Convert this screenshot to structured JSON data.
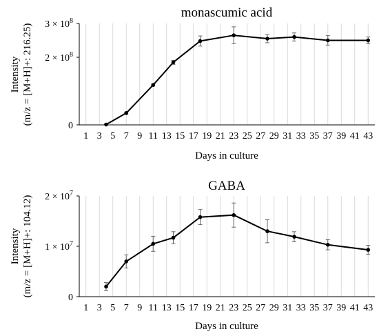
{
  "chart_data": [
    {
      "type": "line",
      "title": "monascumic acid",
      "xlabel": "Days in culture",
      "ylabel_line1": "Intensity",
      "ylabel_line2": "(m/z = [M+H]+: 216.25)",
      "x_ticks": [
        1,
        3,
        5,
        7,
        9,
        11,
        13,
        15,
        17,
        19,
        21,
        23,
        25,
        27,
        29,
        31,
        33,
        35,
        37,
        39,
        41,
        43
      ],
      "xlim": [
        0,
        44
      ],
      "ylim": [
        0,
        300000000
      ],
      "y_ticks": [
        {
          "value": 0,
          "coef": "0",
          "exp": ""
        },
        {
          "value": 200000000,
          "coef": "2 × 10",
          "exp": "8"
        },
        {
          "value": 300000000,
          "coef": "3 × 10",
          "exp": "8"
        }
      ],
      "grid": "vertical",
      "x": [
        4,
        7,
        11,
        14,
        18,
        23,
        28,
        32,
        37,
        43
      ],
      "values": [
        1000000,
        35000000,
        118000000,
        185000000,
        248000000,
        265000000,
        255000000,
        260000000,
        250000000,
        250000000
      ],
      "errors": [
        1000000,
        3000000,
        3000000,
        6000000,
        15000000,
        25000000,
        12000000,
        12000000,
        14000000,
        10000000
      ]
    },
    {
      "type": "line",
      "title": "GABA",
      "xlabel": "Days in culture",
      "ylabel_line1": "Intensity",
      "ylabel_line2": "(m/z = [M+H]+: 104.12)",
      "x_ticks": [
        1,
        3,
        5,
        7,
        9,
        11,
        13,
        15,
        17,
        19,
        21,
        23,
        25,
        27,
        29,
        31,
        33,
        35,
        37,
        39,
        41,
        43
      ],
      "xlim": [
        0,
        44
      ],
      "ylim": [
        0,
        20000000
      ],
      "y_ticks": [
        {
          "value": 0,
          "coef": "0",
          "exp": ""
        },
        {
          "value": 10000000,
          "coef": "1 × 10",
          "exp": "7"
        },
        {
          "value": 20000000,
          "coef": "2 × 10",
          "exp": "7"
        }
      ],
      "grid": "vertical",
      "x": [
        4,
        7,
        11,
        14,
        18,
        23,
        28,
        32,
        37,
        43
      ],
      "values": [
        2000000,
        7000000,
        10500000,
        11700000,
        15800000,
        16200000,
        13000000,
        11900000,
        10300000,
        9300000
      ],
      "errors": [
        800000,
        1300000,
        1500000,
        1200000,
        1500000,
        2400000,
        2300000,
        1000000,
        1000000,
        900000
      ]
    }
  ]
}
